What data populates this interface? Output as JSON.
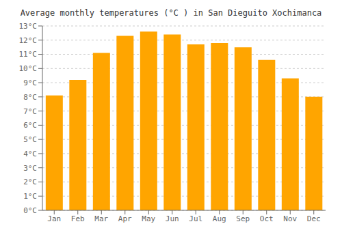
{
  "chart_data": {
    "type": "bar",
    "title": "Average monthly temperatures (°C ) in San Dieguito Xochimanca",
    "categories": [
      "Jan",
      "Feb",
      "Mar",
      "Apr",
      "May",
      "Jun",
      "Jul",
      "Aug",
      "Sep",
      "Oct",
      "Nov",
      "Dec"
    ],
    "values": [
      8.1,
      9.2,
      11.1,
      12.3,
      12.6,
      12.4,
      11.7,
      11.8,
      11.5,
      10.6,
      9.3,
      8.0
    ],
    "color": "#FFA500",
    "ylim": [
      0,
      13
    ],
    "yticks": [
      {
        "value": 0,
        "label": "0°C"
      },
      {
        "value": 1,
        "label": "1°C"
      },
      {
        "value": 2,
        "label": "2°C"
      },
      {
        "value": 3,
        "label": "3°C"
      },
      {
        "value": 4,
        "label": "4°C"
      },
      {
        "value": 5,
        "label": "5°C"
      },
      {
        "value": 6,
        "label": "6°C"
      },
      {
        "value": 7,
        "label": "7°C"
      },
      {
        "value": 8,
        "label": "8°C"
      },
      {
        "value": 9,
        "label": "9°C"
      },
      {
        "value": 10,
        "label": "10°C"
      },
      {
        "value": 11,
        "label": "11°C"
      },
      {
        "value": 12,
        "label": "12°C"
      },
      {
        "value": 13,
        "label": "13°C"
      }
    ],
    "grid": true
  }
}
